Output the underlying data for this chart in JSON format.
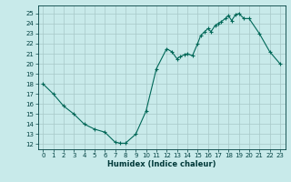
{
  "title": "",
  "xlabel": "Humidex (Indice chaleur)",
  "ylabel": "",
  "bg_color": "#c8eaea",
  "grid_color": "#a8c8c8",
  "line_color": "#006858",
  "marker_color": "#006858",
  "xlim": [
    -0.5,
    23.5
  ],
  "ylim": [
    11.5,
    25.8
  ],
  "yticks": [
    12,
    13,
    14,
    15,
    16,
    17,
    18,
    19,
    20,
    21,
    22,
    23,
    24,
    25
  ],
  "xticks": [
    0,
    1,
    2,
    3,
    4,
    5,
    6,
    7,
    8,
    9,
    10,
    11,
    12,
    13,
    14,
    15,
    16,
    17,
    18,
    19,
    20,
    21,
    22,
    23
  ],
  "x": [
    0,
    1,
    2,
    3,
    4,
    5,
    6,
    7,
    7.5,
    8,
    9,
    10,
    11,
    12,
    12.5,
    13,
    13.3,
    13.7,
    14,
    14.5,
    15,
    15.3,
    15.7,
    16,
    16.3,
    16.7,
    17,
    17.3,
    17.7,
    18,
    18.3,
    18.7,
    19,
    19.5,
    20,
    21,
    22,
    23
  ],
  "y": [
    18,
    17,
    15.8,
    15,
    14,
    13.5,
    13.2,
    12.2,
    12.1,
    12.1,
    13,
    15.3,
    19.5,
    21.5,
    21.2,
    20.5,
    20.7,
    20.9,
    21.0,
    20.8,
    22,
    22.8,
    23.2,
    23.5,
    23.2,
    23.8,
    24,
    24.2,
    24.5,
    24.8,
    24.3,
    24.9,
    25,
    24.5,
    24.5,
    23,
    21.2,
    20
  ]
}
